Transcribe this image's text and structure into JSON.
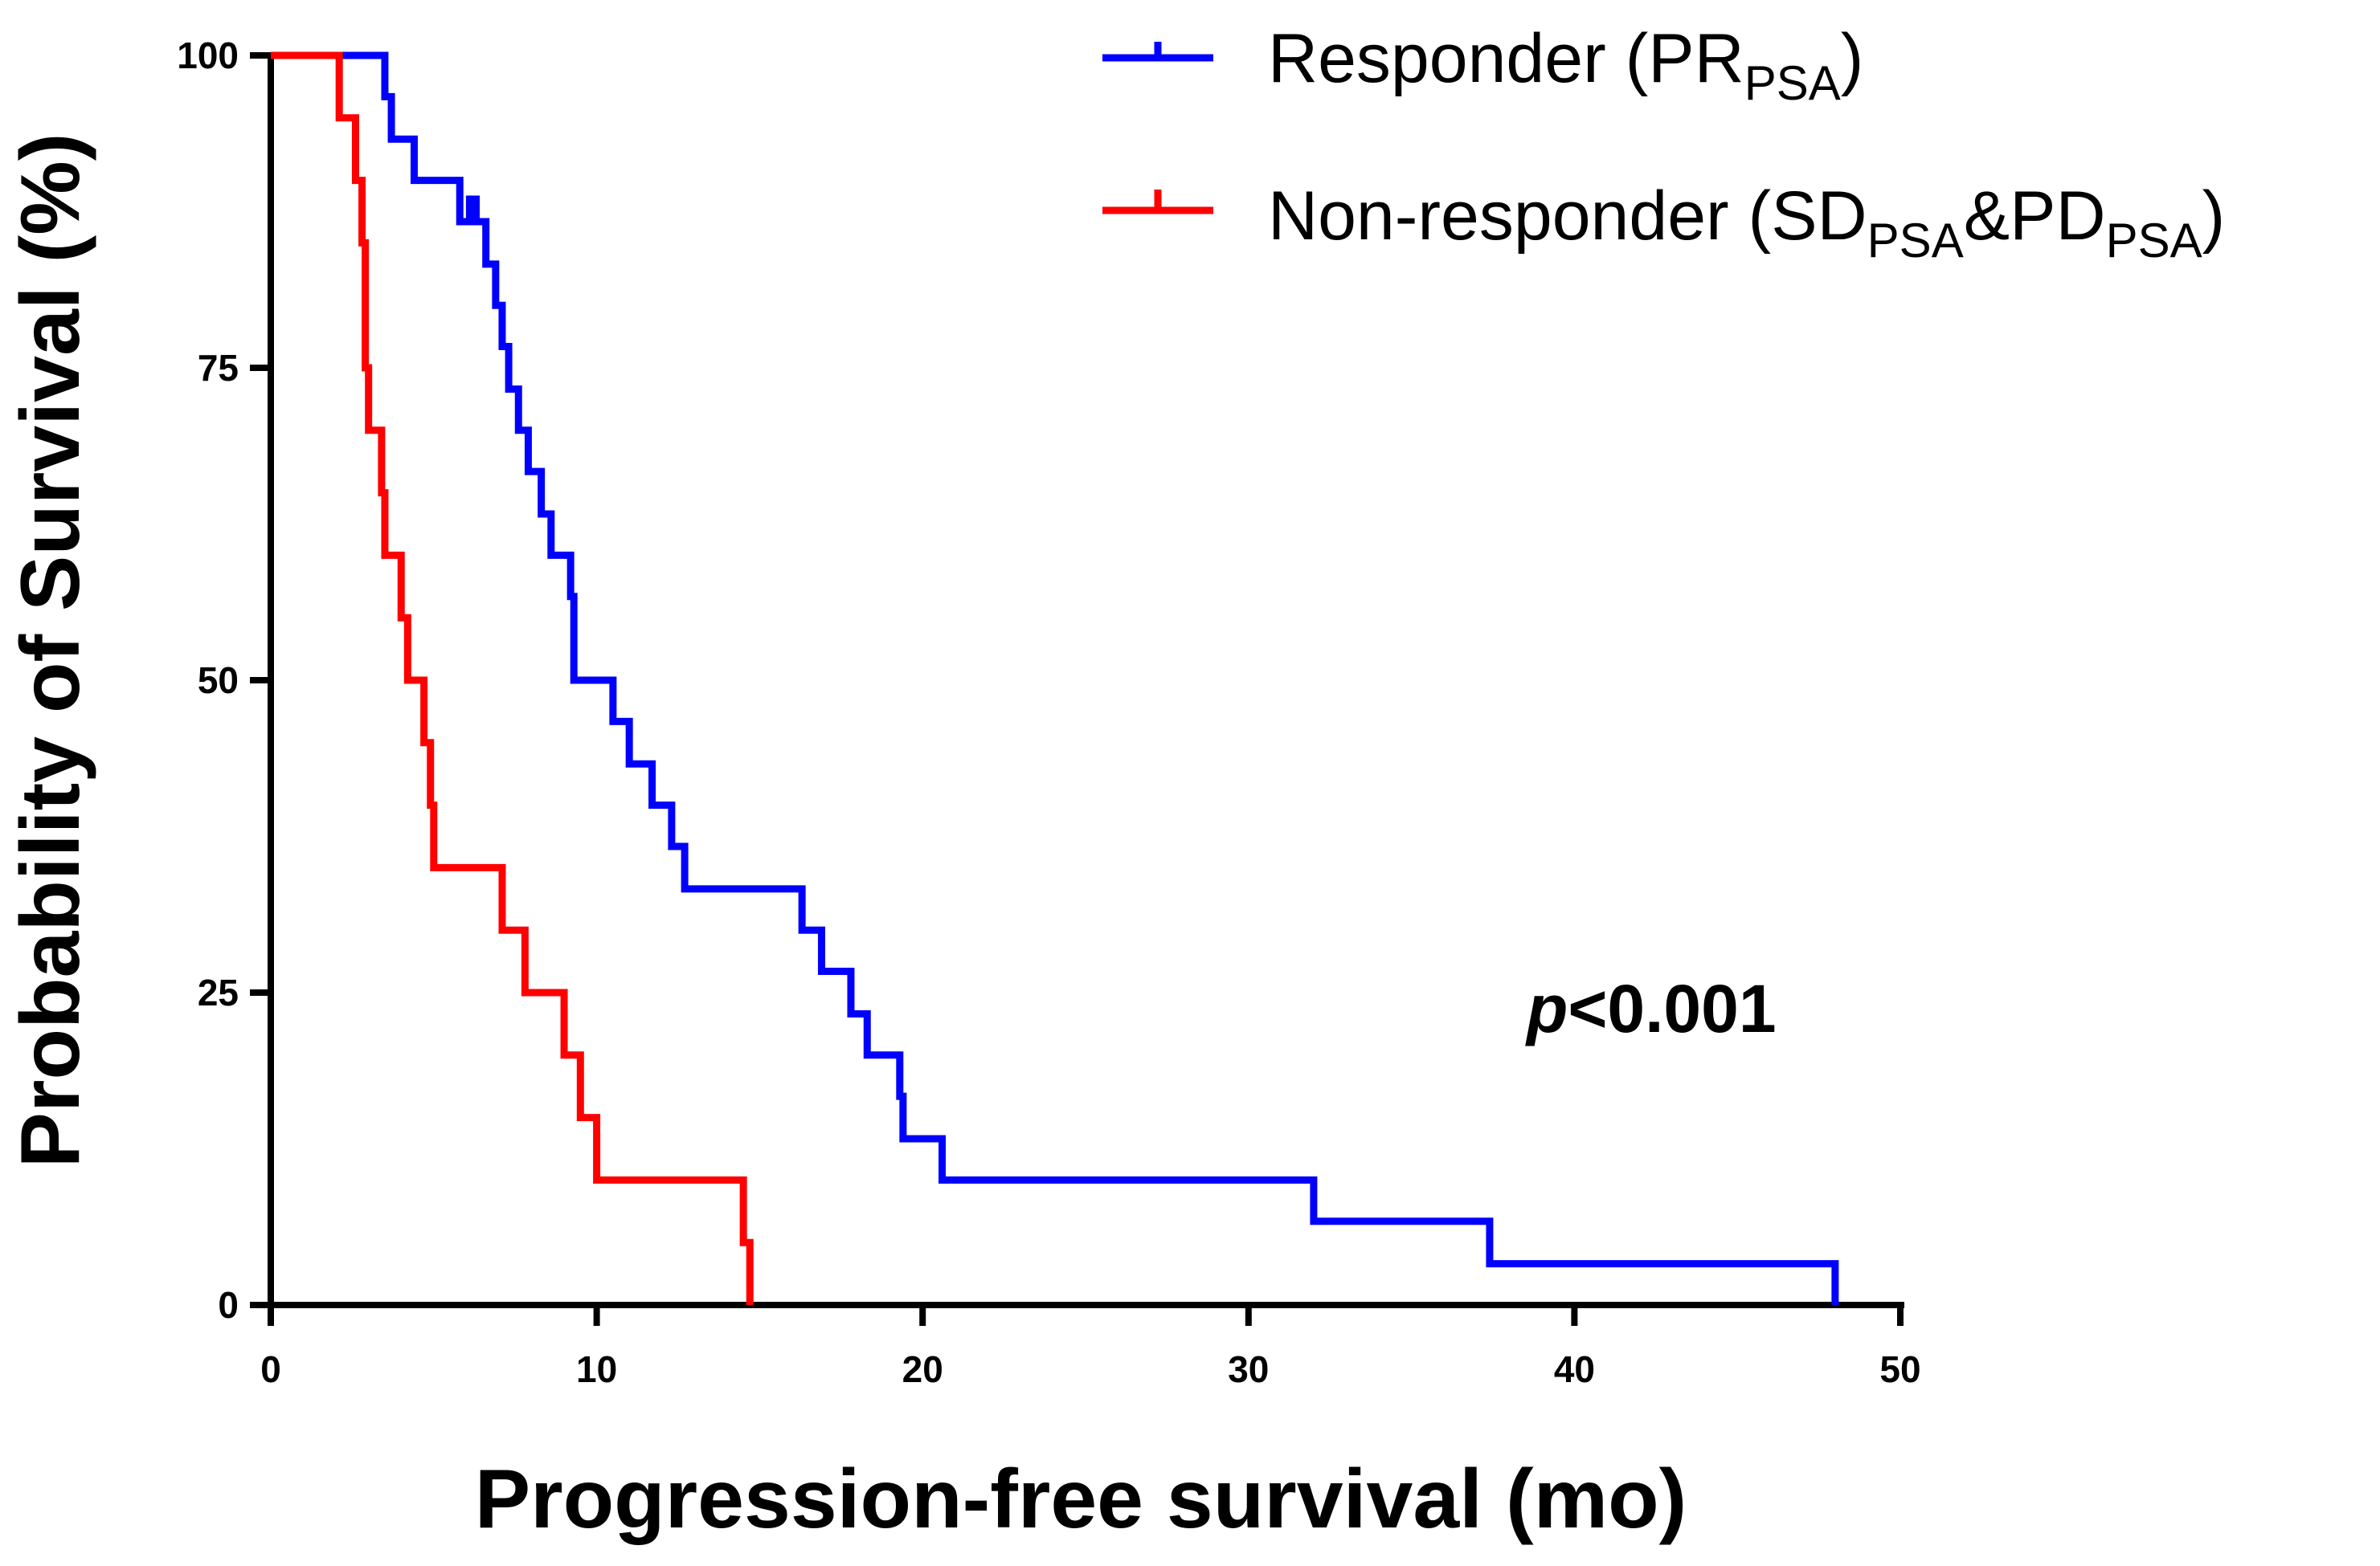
{
  "chart_data": {
    "type": "line",
    "subtype": "kaplan-meier step",
    "xlabel": "Progression-free survival (mo)",
    "ylabel": "Probability of Survival (%)",
    "xlim": [
      0,
      50
    ],
    "ylim": [
      0,
      100
    ],
    "x_ticks": [
      0,
      10,
      20,
      30,
      40,
      50
    ],
    "y_ticks": [
      0,
      25,
      50,
      75,
      100
    ],
    "grid": false,
    "legend_position": "top-right",
    "annotation": {
      "italic": "p",
      "text": "<0.001"
    },
    "series": [
      {
        "name": "Responder (PR",
        "name_sub": "PSA",
        "name_end": ")",
        "color": "#0000ff",
        "x": [
          0,
          3.5,
          3.7,
          4.4,
          5.8,
          6.1,
          6.3,
          6.6,
          6.9,
          7.1,
          7.3,
          7.6,
          7.9,
          8.3,
          8.6,
          9.2,
          9.3,
          10.5,
          11.0,
          11.7,
          12.3,
          12.7,
          16.3,
          16.9,
          17.8,
          18.3,
          19.3,
          19.4,
          20.6,
          32.0,
          37.4,
          48.0
        ],
        "y": [
          100,
          96.7,
          93.3,
          90.0,
          86.7,
          88.5,
          86.7,
          83.3,
          80.0,
          76.7,
          73.3,
          70.0,
          66.7,
          63.3,
          60.0,
          56.7,
          50.0,
          46.7,
          43.3,
          40.0,
          36.7,
          33.3,
          30.0,
          26.7,
          23.3,
          20.0,
          16.7,
          13.3,
          10.0,
          6.7,
          3.3,
          0
        ]
      },
      {
        "name": "Non-responder (SD",
        "name_sub": "PSA",
        "name_mid": "&PD",
        "name_sub2": "PSA",
        "name_end": ")",
        "color": "#ff0000",
        "x": [
          0,
          2.1,
          2.6,
          2.8,
          2.9,
          3.0,
          3.4,
          3.5,
          4.0,
          4.2,
          4.7,
          4.9,
          5.0,
          7.1,
          7.8,
          9.0,
          9.5,
          10.0,
          14.5,
          14.6,
          14.7
        ],
        "y": [
          100,
          95,
          90,
          85,
          75,
          70,
          65,
          60,
          55,
          50,
          45,
          40,
          35,
          30,
          25,
          20,
          15,
          10,
          5,
          5,
          0
        ]
      }
    ]
  }
}
